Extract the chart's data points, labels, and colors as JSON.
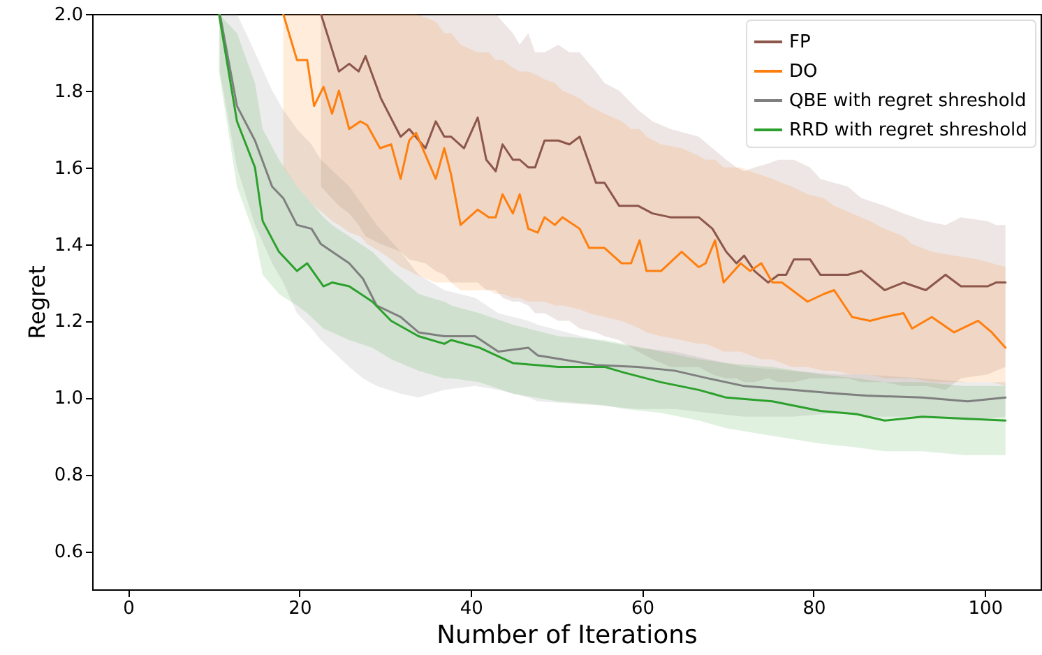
{
  "chart_data": {
    "type": "line",
    "xlabel": "Number of Iterations",
    "ylabel": "Regret",
    "xlim": [
      -4.2,
      106.5
    ],
    "ylim": [
      0.5,
      2.0
    ],
    "xticks": [
      0,
      20,
      40,
      60,
      80,
      100
    ],
    "yticks": [
      0.6,
      0.8,
      {
        "value": 1,
        "label": "1.0"
      },
      1.2,
      1.4,
      1.6,
      1.8,
      {
        "value": 2,
        "label": "2.0"
      }
    ],
    "grid": false,
    "legend": "top right",
    "series": [
      {
        "name": "FP",
        "color": "#8c564b",
        "x": [
          22.5,
          24.6,
          25.8,
          26.9,
          27.7,
          29.5,
          31.8,
          32.8,
          34.7,
          35.9,
          36.9,
          37.7,
          39.2,
          40.8,
          41.8,
          42.9,
          43.7,
          44.9,
          45.7,
          46.7,
          47.5,
          48.6,
          50.2,
          51.5,
          52.7,
          54.6,
          55.6,
          57.3,
          59.5,
          61.2,
          63.3,
          66.6,
          68.2,
          69.8,
          71,
          71.9,
          73.1,
          74.7,
          75.9,
          76.8,
          77.7,
          79.6,
          80.8,
          84,
          85.6,
          88.3,
          90.5,
          93.1,
          95.4,
          97.2,
          100.3,
          101.3,
          102.4
        ],
        "values": [
          2.0,
          1.85,
          1.87,
          1.85,
          1.89,
          1.78,
          1.68,
          1.7,
          1.65,
          1.72,
          1.68,
          1.68,
          1.65,
          1.73,
          1.62,
          1.59,
          1.66,
          1.62,
          1.62,
          1.6,
          1.6,
          1.67,
          1.67,
          1.66,
          1.68,
          1.56,
          1.56,
          1.5,
          1.5,
          1.48,
          1.47,
          1.47,
          1.44,
          1.38,
          1.35,
          1.37,
          1.33,
          1.3,
          1.32,
          1.32,
          1.36,
          1.36,
          1.32,
          1.32,
          1.33,
          1.28,
          1.3,
          1.28,
          1.32,
          1.29,
          1.29,
          1.3,
          1.3
        ],
        "lower": [
          1.55,
          1.5,
          1.48,
          1.45,
          1.42,
          1.4,
          1.38,
          1.36,
          1.35,
          1.33,
          1.32,
          1.3,
          1.3,
          1.3,
          1.28,
          1.28,
          1.26,
          1.25,
          1.25,
          1.24,
          1.22,
          1.22,
          1.2,
          1.2,
          1.18,
          1.17,
          1.16,
          1.15,
          1.12,
          1.1,
          1.08,
          1.08,
          1.06,
          1.05,
          1.05,
          1.04,
          1.04,
          1.05,
          1.04,
          1.04,
          1.04,
          1.05,
          1.05,
          1.05,
          1.04,
          1.04,
          1.03,
          1.03,
          1.02,
          1.05,
          1.06,
          1.07,
          1.08
        ],
        "upper": [
          2.0,
          2.0,
          2.0,
          2.0,
          2.0,
          2.0,
          2.0,
          2.0,
          2.0,
          2.0,
          2.0,
          2.0,
          2.0,
          2.0,
          2.0,
          2.0,
          1.98,
          1.95,
          1.92,
          1.95,
          1.9,
          1.9,
          1.92,
          1.9,
          1.9,
          1.85,
          1.82,
          1.8,
          1.75,
          1.72,
          1.7,
          1.68,
          1.65,
          1.62,
          1.6,
          1.59,
          1.6,
          1.61,
          1.62,
          1.62,
          1.62,
          1.6,
          1.57,
          1.55,
          1.52,
          1.5,
          1.48,
          1.46,
          1.45,
          1.47,
          1.46,
          1.45,
          1.45
        ]
      },
      {
        "name": "DO",
        "color": "#ff7f0e",
        "x": [
          18.1,
          19.7,
          20.9,
          21.7,
          22.8,
          23.8,
          24.6,
          25.8,
          27.1,
          27.9,
          29.4,
          30.7,
          31.8,
          32.8,
          33.6,
          35.9,
          36.9,
          37.7,
          38.8,
          40.8,
          42.1,
          42.9,
          43.7,
          44.9,
          45.7,
          46.7,
          47.8,
          48.6,
          49.8,
          50.7,
          52.7,
          53.8,
          55.6,
          57.6,
          58.7,
          59.7,
          60.5,
          62.2,
          64.6,
          66.6,
          67.4,
          68.5,
          69.5,
          71.5,
          72.6,
          73.9,
          75.2,
          76.3,
          77.5,
          79.3,
          81.2,
          82.4,
          84.5,
          86.6,
          88.3,
          90.5,
          91.5,
          93.8,
          96.4,
          99.2,
          100.8,
          102.4
        ],
        "values": [
          2.0,
          1.88,
          1.88,
          1.76,
          1.81,
          1.74,
          1.8,
          1.7,
          1.72,
          1.71,
          1.65,
          1.66,
          1.57,
          1.67,
          1.69,
          1.57,
          1.65,
          1.58,
          1.45,
          1.49,
          1.47,
          1.47,
          1.53,
          1.48,
          1.53,
          1.44,
          1.43,
          1.47,
          1.45,
          1.47,
          1.44,
          1.39,
          1.39,
          1.35,
          1.35,
          1.41,
          1.33,
          1.33,
          1.38,
          1.34,
          1.35,
          1.41,
          1.3,
          1.35,
          1.33,
          1.35,
          1.3,
          1.3,
          1.28,
          1.25,
          1.27,
          1.28,
          1.21,
          1.2,
          1.21,
          1.22,
          1.18,
          1.21,
          1.17,
          1.2,
          1.17,
          1.13
        ],
        "lower": [
          1.6,
          1.55,
          1.52,
          1.5,
          1.48,
          1.46,
          1.45,
          1.43,
          1.42,
          1.4,
          1.38,
          1.36,
          1.34,
          1.33,
          1.32,
          1.3,
          1.3,
          1.3,
          1.28,
          1.28,
          1.28,
          1.27,
          1.27,
          1.26,
          1.26,
          1.25,
          1.25,
          1.25,
          1.24,
          1.24,
          1.23,
          1.22,
          1.21,
          1.2,
          1.19,
          1.18,
          1.17,
          1.16,
          1.15,
          1.14,
          1.14,
          1.13,
          1.12,
          1.12,
          1.11,
          1.1,
          1.1,
          1.09,
          1.08,
          1.08,
          1.07,
          1.07,
          1.06,
          1.06,
          1.05,
          1.05,
          1.05,
          1.04,
          1.04,
          1.04,
          1.04,
          1.03
        ],
        "upper": [
          2.0,
          2.0,
          2.0,
          2.0,
          2.0,
          2.0,
          2.0,
          2.0,
          2.0,
          2.0,
          2.0,
          2.0,
          2.0,
          2.0,
          2.0,
          1.98,
          1.95,
          1.95,
          1.92,
          1.9,
          1.9,
          1.88,
          1.88,
          1.86,
          1.85,
          1.85,
          1.84,
          1.83,
          1.82,
          1.8,
          1.78,
          1.76,
          1.74,
          1.72,
          1.7,
          1.7,
          1.68,
          1.66,
          1.65,
          1.63,
          1.62,
          1.62,
          1.6,
          1.6,
          1.59,
          1.58,
          1.57,
          1.56,
          1.55,
          1.53,
          1.52,
          1.5,
          1.48,
          1.46,
          1.44,
          1.42,
          1.4,
          1.38,
          1.37,
          1.36,
          1.35,
          1.34
        ]
      },
      {
        "name": "QBE with regret shreshold",
        "color": "#7f7f7f",
        "x": [
          10.7,
          12.7,
          14.8,
          16.8,
          18.1,
          19.7,
          21.4,
          22.5,
          25.8,
          27.4,
          29,
          31.8,
          33.9,
          36.9,
          40.5,
          43.2,
          46.7,
          47.8,
          54.6,
          59.5,
          63.8,
          67.7,
          71.9,
          77.5,
          82.9,
          86.1,
          92.7,
          98,
          102.4
        ],
        "values": [
          2.0,
          1.76,
          1.67,
          1.55,
          1.52,
          1.45,
          1.44,
          1.4,
          1.35,
          1.31,
          1.24,
          1.21,
          1.17,
          1.16,
          1.16,
          1.12,
          1.13,
          1.11,
          1.085,
          1.08,
          1.07,
          1.05,
          1.03,
          1.02,
          1.01,
          1.005,
          1.0,
          0.99,
          1.0
        ],
        "lower": [
          1.85,
          1.6,
          1.45,
          1.35,
          1.3,
          1.22,
          1.18,
          1.15,
          1.08,
          1.05,
          1.03,
          1.01,
          1.0,
          1.02,
          1.03,
          1.02,
          1.0,
          0.99,
          0.98,
          0.97,
          0.97,
          0.96,
          0.95,
          0.95,
          0.96,
          0.95,
          0.95,
          0.94,
          0.95
        ],
        "upper": [
          2.0,
          2.0,
          1.9,
          1.8,
          1.75,
          1.7,
          1.66,
          1.62,
          1.55,
          1.5,
          1.45,
          1.38,
          1.32,
          1.28,
          1.26,
          1.22,
          1.2,
          1.19,
          1.15,
          1.13,
          1.12,
          1.1,
          1.08,
          1.07,
          1.06,
          1.06,
          1.05,
          1.04,
          1.04
        ]
      },
      {
        "name": "RRD with regret shreshold",
        "color": "#2ca02c",
        "x": [
          10.6,
          12.7,
          14.8,
          15.7,
          17.6,
          19.7,
          20.9,
          22.8,
          23.8,
          25.8,
          28.5,
          30.7,
          33.9,
          36.9,
          37.7,
          41,
          44.9,
          50.2,
          55.6,
          57.9,
          62.2,
          66.6,
          69.8,
          75.2,
          80.8,
          85,
          88.3,
          92.7,
          97.6,
          102.4
        ],
        "values": [
          2.0,
          1.72,
          1.6,
          1.46,
          1.38,
          1.33,
          1.35,
          1.29,
          1.3,
          1.29,
          1.25,
          1.2,
          1.16,
          1.14,
          1.15,
          1.13,
          1.09,
          1.08,
          1.08,
          1.065,
          1.04,
          1.02,
          1.0,
          0.99,
          0.965,
          0.957,
          0.94,
          0.95,
          0.945,
          0.94
        ],
        "lower": [
          1.85,
          1.55,
          1.42,
          1.32,
          1.27,
          1.24,
          1.22,
          1.18,
          1.17,
          1.15,
          1.13,
          1.1,
          1.07,
          1.05,
          1.05,
          1.04,
          1.01,
          0.99,
          0.98,
          0.97,
          0.96,
          0.94,
          0.92,
          0.9,
          0.88,
          0.87,
          0.86,
          0.86,
          0.85,
          0.85
        ],
        "upper": [
          2.0,
          1.95,
          1.82,
          1.7,
          1.62,
          1.55,
          1.52,
          1.47,
          1.45,
          1.42,
          1.38,
          1.33,
          1.27,
          1.25,
          1.24,
          1.22,
          1.19,
          1.16,
          1.15,
          1.14,
          1.12,
          1.1,
          1.09,
          1.08,
          1.06,
          1.05,
          1.04,
          1.04,
          1.03,
          1.03
        ]
      }
    ]
  }
}
